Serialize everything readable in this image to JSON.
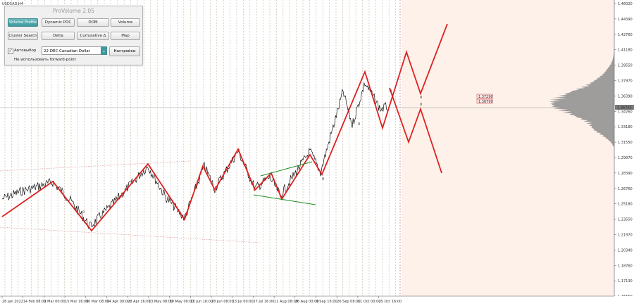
{
  "symbol": "USDCAD,H4",
  "panel": {
    "title": "ProVolume 2.05",
    "buttons": {
      "volume_profile": "Volume Profile",
      "dynamic_poc": "Dynamic POC",
      "dom": "DOM",
      "volume": "Volume",
      "cluster_search": "Cluster Search",
      "delta": "Delta",
      "cumulative_delta": "Cumulative Δ",
      "map": "Map"
    },
    "autoselect_label": "Автовыбор",
    "autoselect_checked": true,
    "instrument_value": "22 DEC Canadian Dollar",
    "settings_label": "Настройки",
    "forward_point_label": "Не использовать forward-point"
  },
  "price_labels": {
    "level_high": "1.37290",
    "level_low": "1.36790",
    "current": "1.36745"
  },
  "chart_data": {
    "type": "line",
    "symbol": "USDCAD",
    "timeframe": "H4",
    "y_range": [
      1.15,
      1.46
    ],
    "y_ticks": [
      "1.46020",
      "1.44390",
      "1.42760",
      "1.41180",
      "1.39550",
      "1.37970",
      "1.36390",
      "1.34760",
      "1.33180",
      "1.31550",
      "1.29970",
      "1.28390",
      "1.26760",
      "1.25180",
      "1.23550",
      "1.21970",
      "1.20340",
      "1.18760",
      "1.17130",
      "1.15550"
    ],
    "x_tick_labels": [
      "28 Jan 2022",
      "14 Feb 08:00",
      "1 Mar 00:00",
      "15 Mar 16:00",
      "30 Mar 08:00",
      "14 Apr 00:00",
      "28 Apr 16:00",
      "13 May 08:00",
      "30 May 00:00",
      "13 Jun 16:00",
      "28 Jun 08:00",
      "13 Jul 00:00",
      "27 Jul 16:00",
      "11 Aug 08:00",
      "26 Aug 00:00",
      "9 Sep 16:00",
      "26 Sep 08:00",
      "11 Oct 00:00",
      "25 Oct 16:00"
    ],
    "red_zigzag_points": [
      [
        1.262
      ],
      [
        1.295
      ],
      [
        1.241
      ],
      [
        1.305
      ],
      [
        1.251
      ],
      [
        1.309
      ],
      [
        1.282
      ],
      [
        1.318
      ],
      [
        1.288
      ],
      [
        1.279
      ],
      [
        1.303
      ],
      [
        1.273
      ],
      [
        1.314
      ],
      [
        1.296
      ],
      [
        1.401
      ],
      [
        1.364
      ],
      [
        1.382
      ],
      [
        1.356
      ],
      [
        1.423
      ],
      [
        1.387
      ],
      [
        1.451
      ],
      [
        1.352
      ],
      [
        1.386
      ],
      [
        1.33
      ]
    ],
    "wedge_green_upper": [
      1.298,
      1.312
    ],
    "wedge_green_lower": [
      1.279,
      1.27
    ],
    "projection_markers": [
      "0",
      "0",
      "0",
      "0",
      "0",
      "0",
      "0",
      "0"
    ]
  }
}
